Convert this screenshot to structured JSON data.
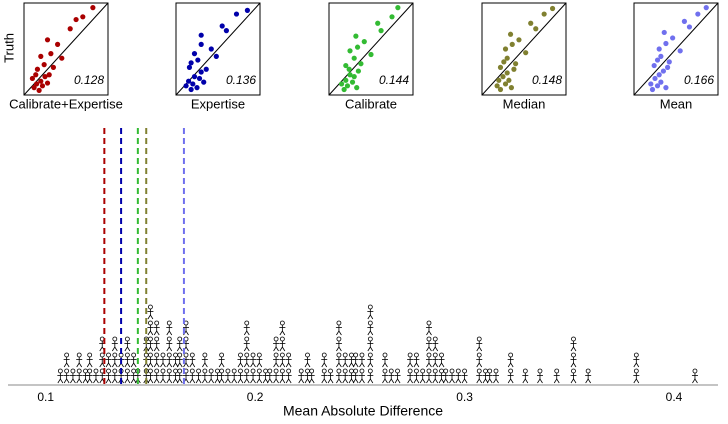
{
  "chart_data": [
    {
      "type": "scatter",
      "ylabel": "Truth",
      "xlim": [
        0,
        1
      ],
      "ylim": [
        0,
        1
      ],
      "panels": [
        {
          "name": "Calibrate+Expertise",
          "color": "#aa0000",
          "value": 0.128,
          "x": [
            0.1,
            0.12,
            0.15,
            0.18,
            0.2,
            0.22,
            0.25,
            0.28,
            0.3,
            0.14,
            0.16,
            0.24,
            0.35,
            0.2,
            0.32,
            0.4,
            0.28,
            0.45,
            0.55,
            0.62,
            0.7,
            0.82
          ],
          "y": [
            0.18,
            0.08,
            0.12,
            0.05,
            0.15,
            0.1,
            0.2,
            0.13,
            0.22,
            0.22,
            0.28,
            0.33,
            0.3,
            0.42,
            0.45,
            0.55,
            0.6,
            0.4,
            0.72,
            0.82,
            0.85,
            0.95
          ]
        },
        {
          "name": "Expertise",
          "color": "#0000aa",
          "value": 0.136,
          "x": [
            0.12,
            0.15,
            0.18,
            0.2,
            0.22,
            0.25,
            0.28,
            0.3,
            0.33,
            0.16,
            0.18,
            0.26,
            0.36,
            0.22,
            0.3,
            0.42,
            0.3,
            0.48,
            0.55,
            0.6,
            0.72,
            0.85
          ],
          "y": [
            0.1,
            0.15,
            0.06,
            0.12,
            0.2,
            0.08,
            0.18,
            0.25,
            0.14,
            0.3,
            0.35,
            0.38,
            0.28,
            0.45,
            0.55,
            0.5,
            0.65,
            0.42,
            0.75,
            0.7,
            0.88,
            0.92
          ]
        },
        {
          "name": "Calibrate",
          "color": "#33bb33",
          "value": 0.144,
          "x": [
            0.15,
            0.18,
            0.2,
            0.22,
            0.25,
            0.28,
            0.3,
            0.33,
            0.35,
            0.2,
            0.24,
            0.3,
            0.38,
            0.25,
            0.34,
            0.42,
            0.32,
            0.5,
            0.58,
            0.62,
            0.75,
            0.82
          ],
          "y": [
            0.12,
            0.06,
            0.16,
            0.1,
            0.22,
            0.14,
            0.2,
            0.08,
            0.26,
            0.32,
            0.28,
            0.4,
            0.34,
            0.48,
            0.52,
            0.58,
            0.64,
            0.44,
            0.78,
            0.7,
            0.85,
            0.95
          ]
        },
        {
          "name": "Median",
          "color": "#808030",
          "value": 0.148,
          "x": [
            0.18,
            0.2,
            0.22,
            0.25,
            0.28,
            0.3,
            0.32,
            0.35,
            0.38,
            0.22,
            0.26,
            0.3,
            0.4,
            0.28,
            0.36,
            0.44,
            0.34,
            0.52,
            0.58,
            0.64,
            0.74,
            0.84
          ],
          "y": [
            0.1,
            0.16,
            0.06,
            0.2,
            0.12,
            0.24,
            0.16,
            0.08,
            0.28,
            0.3,
            0.36,
            0.4,
            0.34,
            0.5,
            0.55,
            0.6,
            0.66,
            0.46,
            0.78,
            0.72,
            0.88,
            0.94
          ]
        },
        {
          "name": "Mean",
          "color": "#7070ee",
          "value": 0.166,
          "x": [
            0.2,
            0.22,
            0.25,
            0.28,
            0.3,
            0.32,
            0.35,
            0.38,
            0.4,
            0.24,
            0.28,
            0.32,
            0.42,
            0.3,
            0.38,
            0.46,
            0.36,
            0.55,
            0.6,
            0.66,
            0.76,
            0.86
          ],
          "y": [
            0.12,
            0.06,
            0.18,
            0.1,
            0.22,
            0.14,
            0.26,
            0.08,
            0.3,
            0.32,
            0.38,
            0.42,
            0.36,
            0.5,
            0.56,
            0.62,
            0.68,
            0.48,
            0.8,
            0.74,
            0.88,
            0.95
          ]
        }
      ]
    },
    {
      "type": "dotplot",
      "xlabel": "Mean Absolute Difference",
      "xlim": [
        0.082,
        0.421
      ],
      "xticks": [
        0.1,
        0.2,
        0.3,
        0.4
      ],
      "values": [
        0.107,
        0.11,
        0.11,
        0.113,
        0.116,
        0.116,
        0.119,
        0.121,
        0.121,
        0.124,
        0.127,
        0.127,
        0.127,
        0.13,
        0.13,
        0.133,
        0.133,
        0.133,
        0.136,
        0.136,
        0.139,
        0.139,
        0.139,
        0.142,
        0.142,
        0.144,
        0.148,
        0.148,
        0.148,
        0.15,
        0.15,
        0.15,
        0.15,
        0.15,
        0.153,
        0.153,
        0.153,
        0.153,
        0.156,
        0.156,
        0.159,
        0.159,
        0.159,
        0.159,
        0.162,
        0.162,
        0.164,
        0.164,
        0.164,
        0.167,
        0.167,
        0.167,
        0.167,
        0.17,
        0.17,
        0.173,
        0.176,
        0.176,
        0.179,
        0.182,
        0.184,
        0.184,
        0.187,
        0.19,
        0.193,
        0.193,
        0.196,
        0.196,
        0.196,
        0.196,
        0.199,
        0.199,
        0.202,
        0.202,
        0.205,
        0.207,
        0.21,
        0.21,
        0.21,
        0.213,
        0.213,
        0.213,
        0.213,
        0.216,
        0.216,
        0.222,
        0.225,
        0.225,
        0.227,
        0.233,
        0.233,
        0.236,
        0.24,
        0.24,
        0.24,
        0.24,
        0.243,
        0.243,
        0.246,
        0.246,
        0.248,
        0.248,
        0.251,
        0.251,
        0.255,
        0.255,
        0.255,
        0.255,
        0.255,
        0.262,
        0.262,
        0.265,
        0.268,
        0.274,
        0.274,
        0.277,
        0.277,
        0.28,
        0.283,
        0.283,
        0.283,
        0.283,
        0.286,
        0.286,
        0.286,
        0.289,
        0.289,
        0.291,
        0.294,
        0.297,
        0.3,
        0.307,
        0.307,
        0.307,
        0.31,
        0.312,
        0.315,
        0.322,
        0.322,
        0.329,
        0.336,
        0.344,
        0.352,
        0.352,
        0.352,
        0.359,
        0.382,
        0.382,
        0.41
      ]
    }
  ]
}
